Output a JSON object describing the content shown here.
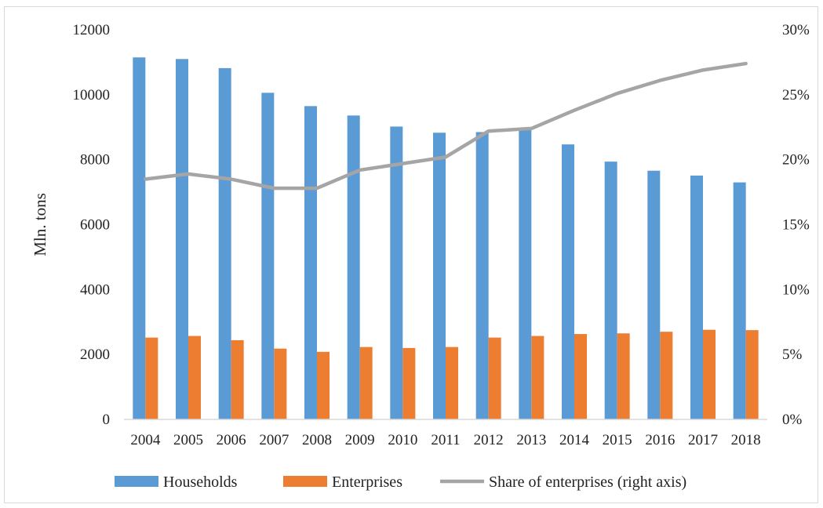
{
  "chart_data": {
    "type": "bar",
    "categories": [
      "2004",
      "2005",
      "2006",
      "2007",
      "2008",
      "2009",
      "2010",
      "2011",
      "2012",
      "2013",
      "2014",
      "2015",
      "2016",
      "2017",
      "2018"
    ],
    "series": [
      {
        "name": "Households",
        "type": "bar",
        "axis": "left",
        "color": "#5b9bd5",
        "values": [
          11150,
          11100,
          10820,
          10060,
          9650,
          9360,
          9020,
          8830,
          8850,
          8920,
          8470,
          7940,
          7660,
          7510,
          7300
        ]
      },
      {
        "name": "Enterprises",
        "type": "bar",
        "axis": "left",
        "color": "#ed7d31",
        "values": [
          2520,
          2570,
          2440,
          2180,
          2080,
          2230,
          2200,
          2230,
          2520,
          2570,
          2630,
          2650,
          2700,
          2760,
          2750
        ]
      },
      {
        "name": "Share of enterprises (right axis)",
        "type": "line",
        "axis": "right",
        "color": "#a5a5a5",
        "values": [
          18.5,
          18.9,
          18.5,
          17.8,
          17.8,
          19.2,
          19.7,
          20.2,
          22.2,
          22.4,
          23.8,
          25.1,
          26.1,
          26.9,
          27.4
        ]
      }
    ],
    "ylabel": "Mln. tons",
    "ylim": [
      0,
      12000
    ],
    "yticks": [
      "0",
      "2000",
      "4000",
      "6000",
      "8000",
      "10000",
      "12000"
    ],
    "y2lim": [
      0,
      30
    ],
    "y2ticks": [
      "0%",
      "5%",
      "10%",
      "15%",
      "20%",
      "25%",
      "30%"
    ],
    "legend_position": "bottom",
    "grid": false
  }
}
